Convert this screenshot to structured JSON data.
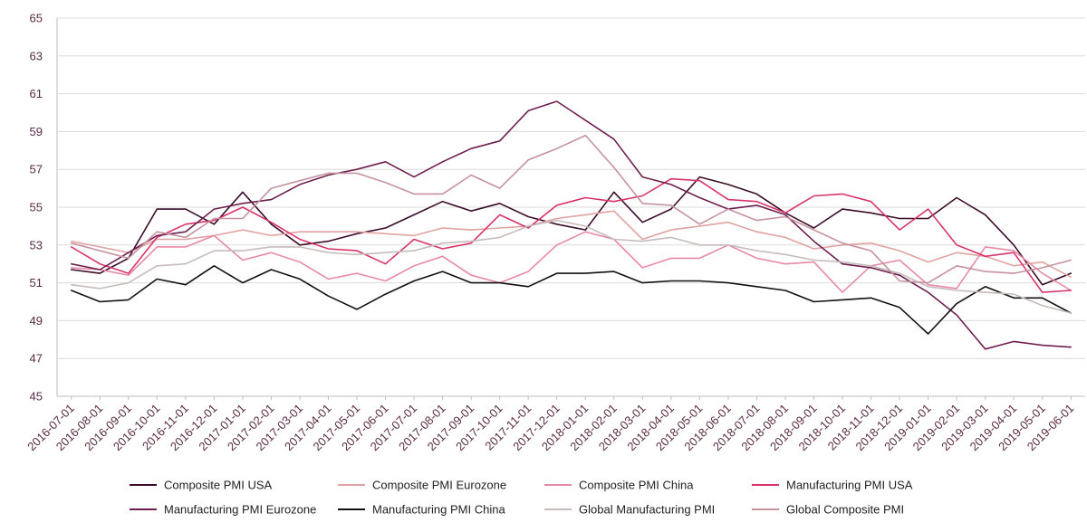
{
  "chart_data": {
    "type": "line",
    "title": "",
    "xlabel": "",
    "ylabel": "",
    "ylim": [
      45,
      65
    ],
    "y_ticks": [
      "45",
      "47",
      "49",
      "51",
      "53",
      "55",
      "57",
      "59",
      "61",
      "63",
      "65"
    ],
    "grid": "horizontal",
    "legend_position": "bottom",
    "categories": [
      "2016-07-01",
      "2016-08-01",
      "2016-09-01",
      "2016-10-01",
      "2016-11-01",
      "2016-12-01",
      "2017-01-01",
      "2017-02-01",
      "2017-03-01",
      "2017-04-01",
      "2017-05-01",
      "2017-06-01",
      "2017-07-01",
      "2017-08-01",
      "2017-09-01",
      "2017-10-01",
      "2017-11-01",
      "2017-12-01",
      "2018-01-01",
      "2018-02-01",
      "2018-03-01",
      "2018-04-01",
      "2018-05-01",
      "2018-06-01",
      "2018-07-01",
      "2018-08-01",
      "2018-09-01",
      "2018-10-01",
      "2018-11-01",
      "2018-12-01",
      "2019-01-01",
      "2019-02-01",
      "2019-03-01",
      "2019-04-01",
      "2019-05-01",
      "2019-06-01"
    ],
    "series": [
      {
        "name": "Composite PMI USA",
        "color": "#3b0d2b",
        "values": [
          51.7,
          51.5,
          52.3,
          54.9,
          54.9,
          54.1,
          55.8,
          54.1,
          53.0,
          53.2,
          53.6,
          53.9,
          54.6,
          55.3,
          54.8,
          55.2,
          54.5,
          54.1,
          53.8,
          55.8,
          54.2,
          54.9,
          56.6,
          56.2,
          55.7,
          54.7,
          53.9,
          54.9,
          54.7,
          54.4,
          54.4,
          55.5,
          54.6,
          53.0,
          50.9,
          51.5
        ]
      },
      {
        "name": "Composite PMI Eurozone",
        "color": "#e0a3a0",
        "values": [
          53.2,
          52.9,
          52.6,
          53.3,
          53.3,
          53.5,
          53.8,
          53.5,
          53.7,
          53.7,
          53.7,
          53.6,
          53.5,
          53.9,
          53.8,
          53.9,
          54.0,
          54.4,
          54.6,
          54.8,
          53.3,
          53.8,
          54.0,
          54.2,
          53.7,
          53.4,
          52.8,
          53.0,
          53.1,
          52.7,
          52.1,
          52.6,
          52.4,
          51.9,
          52.1,
          51.3
        ]
      },
      {
        "name": "Composite PMI China",
        "color": "#e88aa6",
        "values": [
          51.8,
          51.7,
          51.4,
          52.9,
          52.9,
          53.5,
          52.2,
          52.6,
          52.1,
          51.2,
          51.5,
          51.1,
          51.9,
          52.4,
          51.4,
          51.0,
          51.6,
          53.0,
          53.7,
          53.3,
          51.8,
          52.3,
          52.3,
          53.0,
          52.3,
          52.0,
          52.1,
          50.5,
          51.9,
          52.2,
          50.9,
          50.7,
          52.9,
          52.7,
          51.5,
          50.6
        ]
      },
      {
        "name": "Manufacturing PMI USA",
        "color": "#d9346a",
        "values": [
          52.9,
          52.0,
          51.5,
          53.4,
          54.1,
          54.3,
          55.0,
          54.2,
          53.3,
          52.8,
          52.7,
          52.0,
          53.3,
          52.8,
          53.1,
          54.6,
          53.9,
          55.1,
          55.5,
          55.3,
          55.6,
          56.5,
          56.4,
          55.4,
          55.3,
          54.7,
          55.6,
          55.7,
          55.3,
          53.8,
          54.9,
          53.0,
          52.4,
          52.6,
          50.5,
          50.6
        ]
      },
      {
        "name": "Manufacturing PMI Eurozone",
        "color": "#6e1f4f",
        "values": [
          52.0,
          51.7,
          52.6,
          53.5,
          53.7,
          54.9,
          55.2,
          55.4,
          56.2,
          56.7,
          57.0,
          57.4,
          56.6,
          57.4,
          58.1,
          58.5,
          60.1,
          60.6,
          59.6,
          58.6,
          56.6,
          56.2,
          55.5,
          54.9,
          55.1,
          54.6,
          53.2,
          52.0,
          51.8,
          51.4,
          50.5,
          49.3,
          47.5,
          47.9,
          47.7,
          47.6
        ]
      },
      {
        "name": "Manufacturing PMI China",
        "color": "#111111",
        "values": [
          50.6,
          50.0,
          50.1,
          51.2,
          50.9,
          51.9,
          51.0,
          51.7,
          51.2,
          50.3,
          49.6,
          50.4,
          51.1,
          51.6,
          51.0,
          51.0,
          50.8,
          51.5,
          51.5,
          51.6,
          51.0,
          51.1,
          51.1,
          51.0,
          50.8,
          50.6,
          50.0,
          50.1,
          50.2,
          49.7,
          48.3,
          49.9,
          50.8,
          50.2,
          50.2,
          49.4
        ]
      },
      {
        "name": "Global Manufacturing PMI",
        "color": "#c6bcbc",
        "values": [
          50.9,
          50.7,
          51.0,
          51.9,
          52.0,
          52.7,
          52.7,
          52.9,
          52.9,
          52.6,
          52.5,
          52.6,
          52.7,
          53.1,
          53.2,
          53.4,
          54.0,
          54.3,
          54.0,
          53.3,
          53.2,
          53.4,
          53.0,
          53.0,
          52.7,
          52.5,
          52.2,
          52.1,
          51.9,
          51.5,
          50.8,
          50.6,
          50.5,
          50.4,
          49.8,
          49.4
        ]
      },
      {
        "name": "Global Composite PMI",
        "color": "#c5929f",
        "values": [
          53.1,
          52.7,
          52.3,
          53.7,
          53.4,
          54.4,
          54.4,
          56.0,
          56.4,
          56.8,
          56.8,
          56.3,
          55.7,
          55.7,
          56.7,
          56.0,
          57.5,
          58.1,
          58.8,
          57.1,
          55.2,
          55.1,
          54.1,
          54.9,
          54.3,
          54.5,
          53.8,
          53.1,
          52.7,
          51.1,
          51.0,
          51.9,
          51.6,
          51.5,
          51.8,
          52.2
        ]
      }
    ]
  }
}
